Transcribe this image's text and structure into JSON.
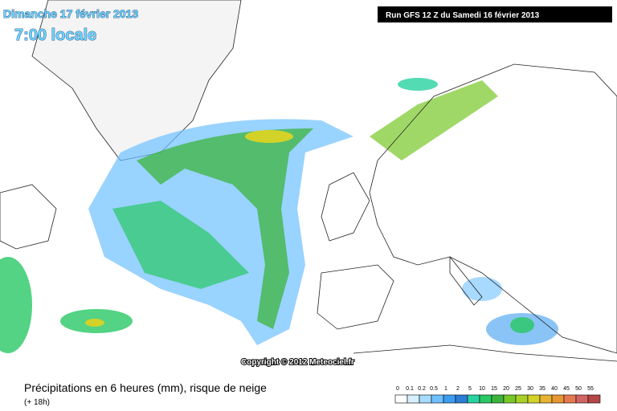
{
  "header": {
    "date": "Dimanche 17 février 2013",
    "time": "7:00 locale",
    "run": "Run GFS 12 Z du Samedi 16 février 2013"
  },
  "copyright": "Copyright © 2012 Meteociel.fr",
  "footer": {
    "title": "Précipitations en 6 heures (mm), risque de neige",
    "lead": "(+ 18h)"
  },
  "legend": {
    "values": [
      0,
      0.1,
      0.2,
      0.5,
      1,
      2,
      5,
      10,
      15,
      20,
      25,
      30,
      35,
      40,
      45,
      50,
      55
    ],
    "colors": [
      "#ffffff",
      "#d6f0ff",
      "#a6dcff",
      "#6ec0ff",
      "#3c9cf0",
      "#2c7cd8",
      "#28d2a0",
      "#28c864",
      "#3cb43c",
      "#78c828",
      "#a8d028",
      "#d2d228",
      "#e6b432",
      "#e69632",
      "#e67850",
      "#d26464",
      "#b44646"
    ]
  }
}
